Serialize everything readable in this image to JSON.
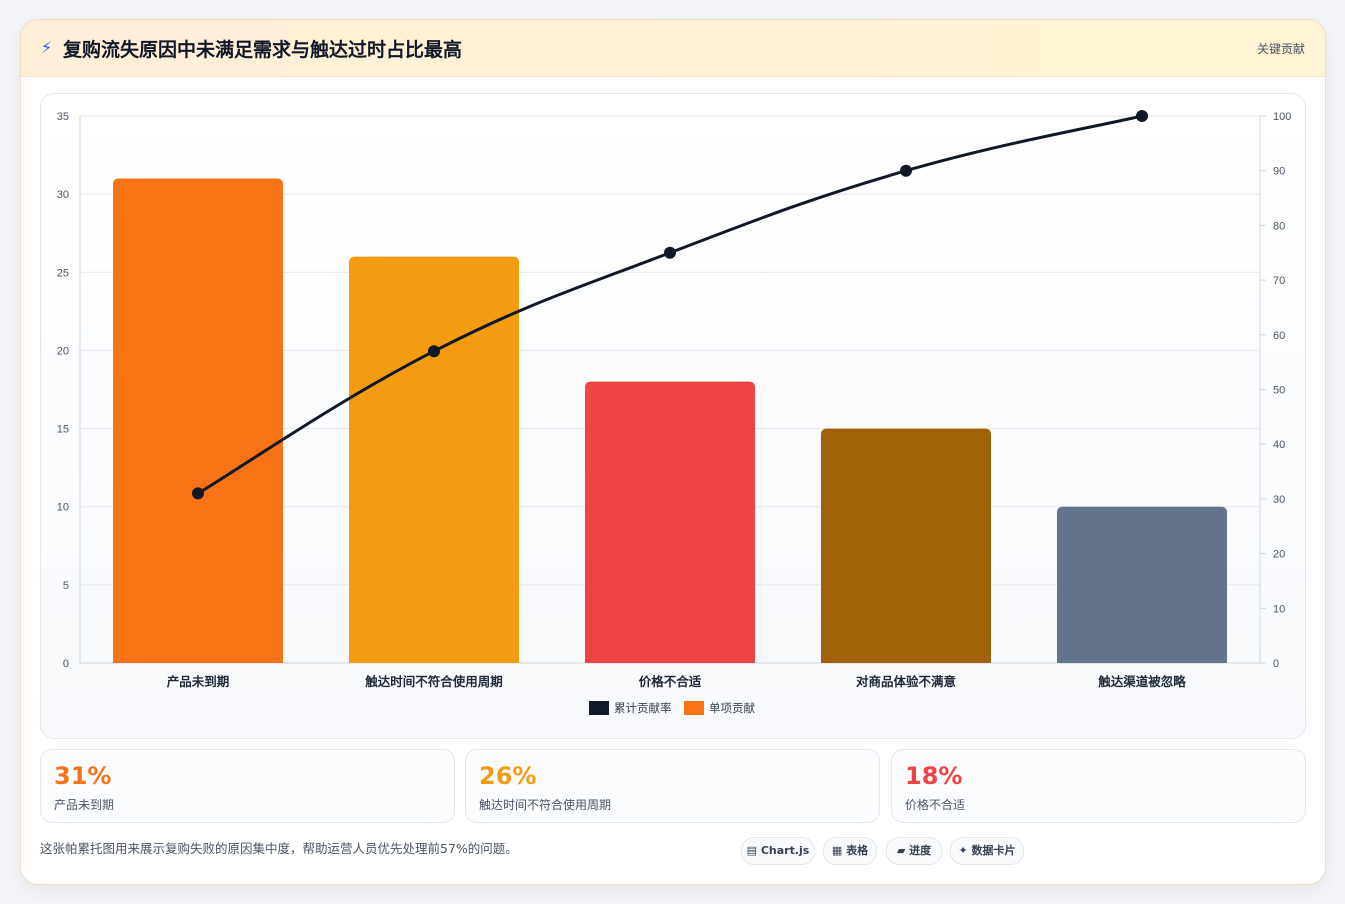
{
  "header": {
    "icon": "lightning-icon",
    "title": "复购流失原因中未满足需求与触达过时占比最高",
    "tag": "关键贡献"
  },
  "colors": {
    "line": "#111827",
    "bars": [
      "#f97316",
      "#f39c12",
      "#ef4444",
      "#a16207",
      "#64748b"
    ]
  },
  "chart_data": {
    "type": "bar",
    "categories": [
      "产品未到期",
      "触达时间不符合使用周期",
      "价格不合适",
      "对商品体验不满意",
      "触达渠道被忽略"
    ],
    "series": [
      {
        "name": "单项贡献",
        "type": "bar",
        "axis": "left",
        "values": [
          31,
          26,
          18,
          15,
          10
        ]
      },
      {
        "name": "累计贡献率",
        "type": "line",
        "axis": "right",
        "values": [
          31,
          57,
          75,
          90,
          100
        ]
      }
    ],
    "ylim": [
      0,
      35
    ],
    "yticks": [
      0,
      5,
      10,
      15,
      20,
      25,
      30,
      35
    ],
    "y2lim": [
      0,
      100
    ],
    "y2ticks": [
      0,
      10,
      20,
      30,
      40,
      50,
      60,
      70,
      80,
      90,
      100
    ],
    "legend": {
      "position": "bottom",
      "labels": [
        "累计贡献率",
        "单项贡献"
      ]
    },
    "grid": true
  },
  "stats": [
    {
      "value": "31%",
      "label": "产品未到期",
      "color": "#f97316"
    },
    {
      "value": "26%",
      "label": "触达时间不符合使用周期",
      "color": "#f39c12"
    },
    {
      "value": "18%",
      "label": "价格不合适",
      "color": "#ef4444"
    }
  ],
  "note": "这张帕累托图用来展示复购失败的原因集中度，帮助运营人员优先处理前57%的问题。",
  "pills": [
    {
      "label": "▤ Chart.js",
      "icon": "chart-icon"
    },
    {
      "label": "▦ 表格",
      "icon": "table-icon"
    },
    {
      "label": "▰ 进度",
      "icon": "progress-icon"
    },
    {
      "label": "✦ 数据卡片",
      "icon": "sparkle-icon"
    }
  ]
}
